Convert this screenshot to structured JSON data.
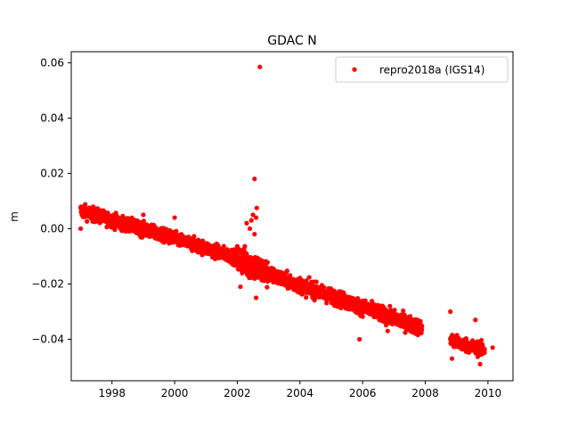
{
  "chart_data": {
    "type": "scatter",
    "title": "GDAC N",
    "xlabel": "",
    "ylabel": "m",
    "xlim": [
      1996.7,
      2010.8
    ],
    "ylim": [
      -0.055,
      0.064
    ],
    "x_ticks": [
      1998,
      2000,
      2002,
      2004,
      2006,
      2008,
      2010
    ],
    "x_tick_labels": [
      "1998",
      "2000",
      "2002",
      "2004",
      "2006",
      "2008",
      "2010"
    ],
    "y_ticks": [
      -0.04,
      -0.02,
      0.0,
      0.02,
      0.04,
      0.06
    ],
    "y_tick_labels": [
      "−0.04",
      "−0.02",
      "0.00",
      "0.02",
      "0.04",
      "0.06"
    ],
    "grid": false,
    "legend_position": "top-right",
    "series": [
      {
        "name": "repro2018a (IGS14)",
        "color": "#ff0000",
        "marker": "circle",
        "trend_segments": [
          {
            "x_start": 1997.0,
            "x_end": 2002.0,
            "y_start": 0.0065,
            "y_end": -0.0105,
            "spread": 0.0022
          },
          {
            "x_start": 2002.0,
            "x_end": 2003.0,
            "y_start": -0.0105,
            "y_end": -0.0165,
            "spread": 0.0045
          },
          {
            "x_start": 2003.0,
            "x_end": 2007.9,
            "y_start": -0.0165,
            "y_end": -0.036,
            "spread": 0.0025
          },
          {
            "x_start": 2008.8,
            "x_end": 2009.9,
            "y_start": -0.0405,
            "y_end": -0.044,
            "spread": 0.0022
          }
        ],
        "outliers": [
          {
            "x": 2002.72,
            "y": 0.0585
          },
          {
            "x": 2002.55,
            "y": 0.018
          },
          {
            "x": 2002.5,
            "y": 0.005
          },
          {
            "x": 2002.62,
            "y": 0.0075
          },
          {
            "x": 2002.45,
            "y": 0.003
          },
          {
            "x": 2002.3,
            "y": 0.002
          },
          {
            "x": 2002.6,
            "y": 0.004
          },
          {
            "x": 2002.4,
            "y": 0.0
          },
          {
            "x": 2002.55,
            "y": -0.002
          },
          {
            "x": 1997.0,
            "y": 0.0
          },
          {
            "x": 2000.0,
            "y": 0.004
          },
          {
            "x": 1999.0,
            "y": 0.005
          },
          {
            "x": 2002.6,
            "y": -0.025
          },
          {
            "x": 2002.1,
            "y": -0.021
          },
          {
            "x": 2005.9,
            "y": -0.04
          },
          {
            "x": 2006.8,
            "y": -0.037
          },
          {
            "x": 2008.8,
            "y": -0.03
          },
          {
            "x": 2009.6,
            "y": -0.033
          },
          {
            "x": 2009.75,
            "y": -0.049
          },
          {
            "x": 2010.15,
            "y": -0.043
          },
          {
            "x": 2008.85,
            "y": -0.047
          }
        ]
      }
    ]
  }
}
